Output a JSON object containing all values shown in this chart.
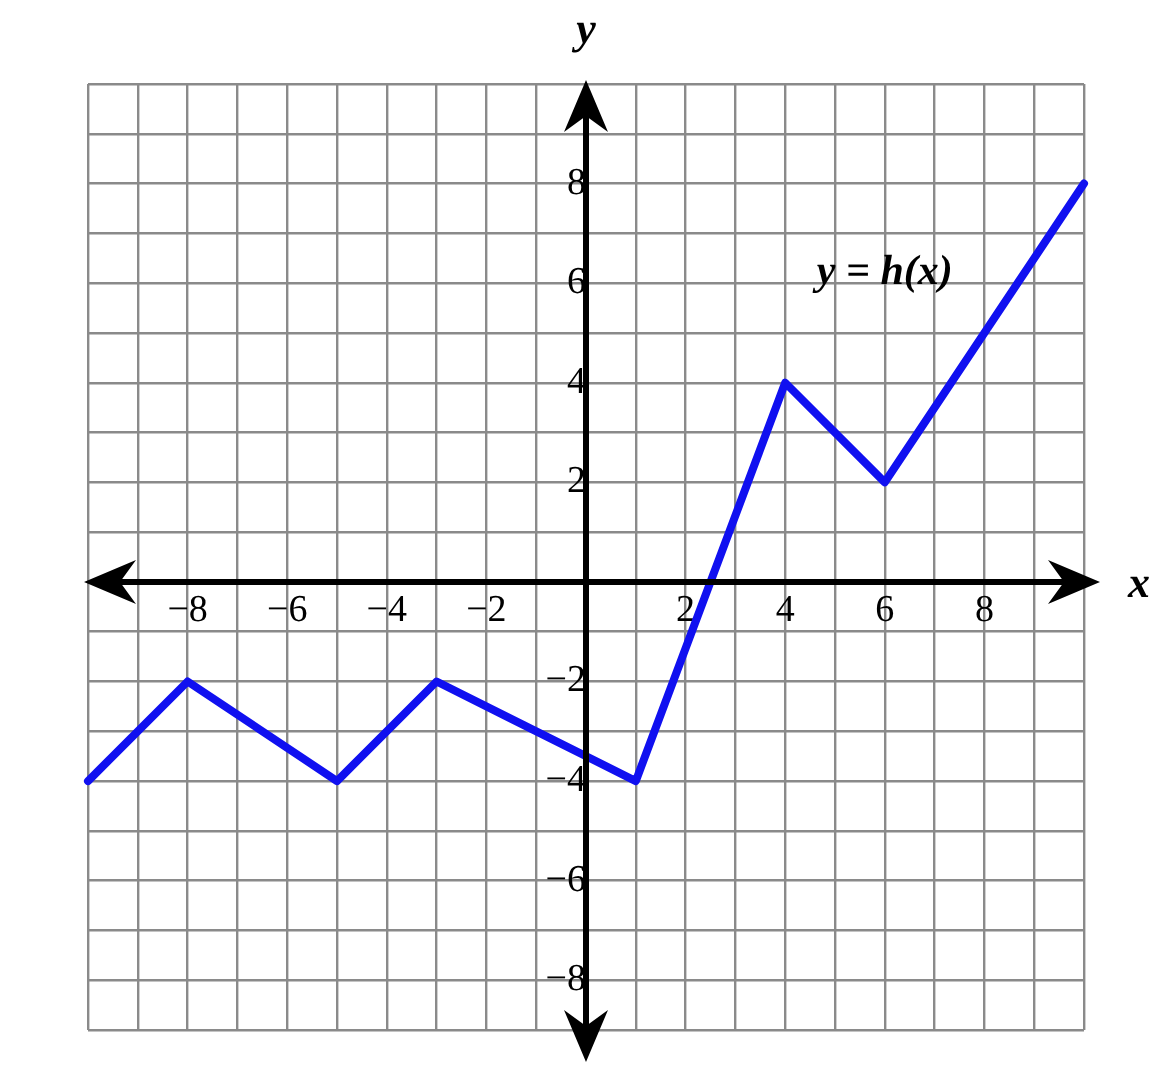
{
  "chart_data": {
    "type": "line",
    "xlabel": "x",
    "ylabel": "y",
    "x": [
      -10,
      -8,
      -5,
      -3,
      1,
      4,
      6,
      10
    ],
    "series": [
      {
        "color": "#1010f0",
        "values": [
          -4,
          -2,
          -4,
          -2,
          -4,
          4,
          2,
          8
        ]
      }
    ],
    "xlim": [
      -10,
      10
    ],
    "ylim": [
      -9,
      10
    ],
    "xticks": [
      {
        "value": -10,
        "label": null
      },
      {
        "value": -9,
        "label": null
      },
      {
        "value": -8,
        "label": "−8"
      },
      {
        "value": -7,
        "label": null
      },
      {
        "value": -6,
        "label": "−6"
      },
      {
        "value": -5,
        "label": null
      },
      {
        "value": -4,
        "label": "−4"
      },
      {
        "value": -3,
        "label": null
      },
      {
        "value": -2,
        "label": "−2"
      },
      {
        "value": -1,
        "label": null
      },
      {
        "value": 0,
        "label": null
      },
      {
        "value": 1,
        "label": null
      },
      {
        "value": 2,
        "label": "2"
      },
      {
        "value": 3,
        "label": null
      },
      {
        "value": 4,
        "label": "4"
      },
      {
        "value": 5,
        "label": null
      },
      {
        "value": 6,
        "label": "6"
      },
      {
        "value": 7,
        "label": null
      },
      {
        "value": 8,
        "label": "8"
      },
      {
        "value": 9,
        "label": null
      },
      {
        "value": 10,
        "label": null
      }
    ],
    "yticks": [
      {
        "value": -9,
        "label": null
      },
      {
        "value": -8,
        "label": "−8"
      },
      {
        "value": -7,
        "label": null
      },
      {
        "value": -6,
        "label": "−6"
      },
      {
        "value": -5,
        "label": null
      },
      {
        "value": -4,
        "label": "−4"
      },
      {
        "value": -3,
        "label": null
      },
      {
        "value": -2,
        "label": "−2"
      },
      {
        "value": -1,
        "label": null
      },
      {
        "value": 0,
        "label": null
      },
      {
        "value": 1,
        "label": null
      },
      {
        "value": 2,
        "label": "2"
      },
      {
        "value": 3,
        "label": null
      },
      {
        "value": 4,
        "label": "4"
      },
      {
        "value": 5,
        "label": null
      },
      {
        "value": 6,
        "label": "6"
      },
      {
        "value": 7,
        "label": null
      },
      {
        "value": 8,
        "label": "8"
      },
      {
        "value": 9,
        "label": null
      },
      {
        "value": 10,
        "label": null
      }
    ],
    "annotations": [
      "y = h(x)"
    ],
    "grid": true,
    "legend": false,
    "marker": "none",
    "line_style": "solid"
  }
}
